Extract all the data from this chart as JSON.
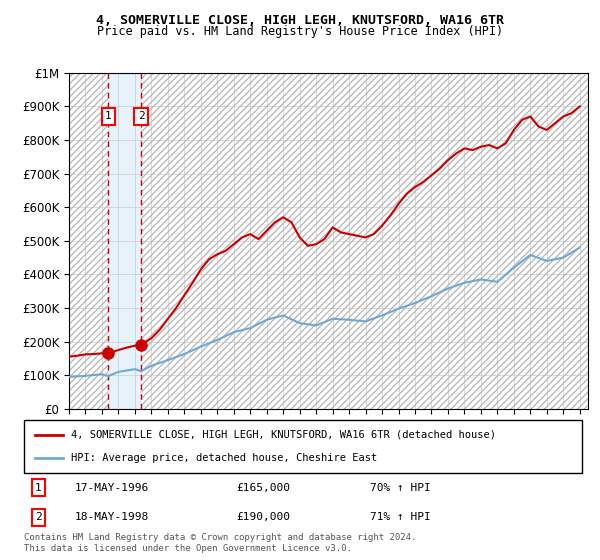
{
  "title1": "4, SOMERVILLE CLOSE, HIGH LEGH, KNUTSFORD, WA16 6TR",
  "title2": "Price paid vs. HM Land Registry's House Price Index (HPI)",
  "legend1": "4, SOMERVILLE CLOSE, HIGH LEGH, KNUTSFORD, WA16 6TR (detached house)",
  "legend2": "HPI: Average price, detached house, Cheshire East",
  "footnote": "Contains HM Land Registry data © Crown copyright and database right 2024.\nThis data is licensed under the Open Government Licence v3.0.",
  "sale1_label": "1",
  "sale1_date": "17-MAY-1996",
  "sale1_price": "£165,000",
  "sale1_hpi": "70% ↑ HPI",
  "sale1_year": 1996.38,
  "sale1_value": 165000,
  "sale2_label": "2",
  "sale2_date": "18-MAY-1998",
  "sale2_price": "£190,000",
  "sale2_hpi": "71% ↑ HPI",
  "sale2_year": 1998.38,
  "sale2_value": 190000,
  "hpi_color": "#6fa8d6",
  "price_color": "#cc0000",
  "hatch_color": "#aaaaaa",
  "shade_color": "#d0e8f8",
  "ylim": [
    0,
    1000000
  ],
  "xlim": [
    1994.0,
    2025.5
  ],
  "hpi_x": [
    1994,
    1995,
    1996,
    1996.38,
    1997,
    1998,
    1998.38,
    1999,
    2000,
    2001,
    2002,
    2003,
    2004,
    2005,
    2006,
    2007,
    2008,
    2009,
    2010,
    2011,
    2012,
    2013,
    2014,
    2015,
    2016,
    2017,
    2018,
    2019,
    2020,
    2021,
    2022,
    2023,
    2024,
    2025
  ],
  "hpi_y": [
    95000,
    98000,
    103000,
    97000,
    110000,
    118000,
    112000,
    128000,
    145000,
    163000,
    185000,
    205000,
    228000,
    240000,
    265000,
    278000,
    255000,
    248000,
    268000,
    265000,
    260000,
    278000,
    298000,
    315000,
    335000,
    358000,
    375000,
    385000,
    378000,
    420000,
    458000,
    440000,
    450000,
    480000
  ],
  "price_x": [
    1994,
    1994.5,
    1995,
    1995.5,
    1996,
    1996.38,
    1997,
    1997.5,
    1998,
    1998.38,
    1999,
    1999.5,
    2000,
    2000.5,
    2001,
    2001.5,
    2002,
    2002.5,
    2003,
    2003.5,
    2004,
    2004.5,
    2005,
    2005.5,
    2006,
    2006.5,
    2007,
    2007.5,
    2008,
    2008.5,
    2009,
    2009.5,
    2010,
    2010.5,
    2011,
    2011.5,
    2012,
    2012.5,
    2013,
    2013.5,
    2014,
    2014.5,
    2015,
    2015.5,
    2016,
    2016.5,
    2017,
    2017.5,
    2018,
    2018.5,
    2019,
    2019.5,
    2020,
    2020.5,
    2021,
    2021.5,
    2022,
    2022.5,
    2023,
    2023.5,
    2024,
    2024.5,
    2025
  ],
  "price_y": [
    155000,
    158000,
    162000,
    163000,
    165000,
    165000,
    175000,
    182000,
    188000,
    190000,
    210000,
    235000,
    268000,
    300000,
    338000,
    375000,
    415000,
    445000,
    460000,
    470000,
    490000,
    510000,
    520000,
    505000,
    530000,
    555000,
    570000,
    555000,
    510000,
    485000,
    490000,
    505000,
    540000,
    525000,
    520000,
    515000,
    510000,
    520000,
    545000,
    575000,
    610000,
    640000,
    660000,
    675000,
    695000,
    715000,
    740000,
    760000,
    775000,
    770000,
    780000,
    785000,
    775000,
    790000,
    830000,
    860000,
    870000,
    840000,
    830000,
    850000,
    870000,
    880000,
    900000
  ],
  "xtick_years": [
    1994,
    1995,
    1996,
    1997,
    1998,
    1999,
    2000,
    2001,
    2002,
    2003,
    2004,
    2005,
    2006,
    2007,
    2008,
    2009,
    2010,
    2011,
    2012,
    2013,
    2014,
    2015,
    2016,
    2017,
    2018,
    2019,
    2020,
    2021,
    2022,
    2023,
    2024,
    2025
  ]
}
